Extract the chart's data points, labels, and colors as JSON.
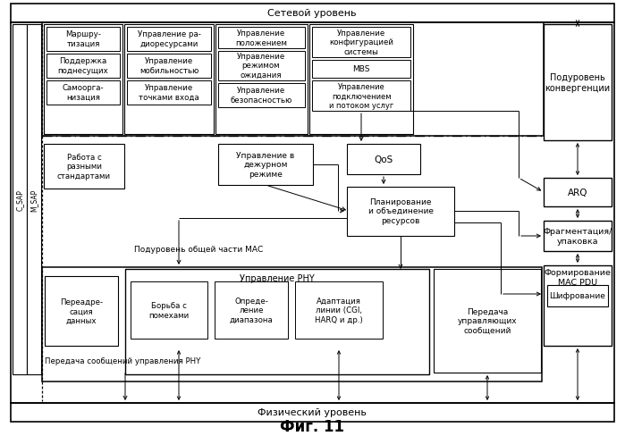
{
  "title": "Фиг. 11",
  "network_layer": "Сетевой уровень",
  "physical_layer": "Физический уровень",
  "c_sap": "C_SAP",
  "m_sap": "M_SAP",
  "convergence": "Подуровень\nконвергенции",
  "arq": "ARQ",
  "fragmentation": "Фрагментация/\nупаковка",
  "mac_pdu": "Формирование\nMAC PDU",
  "encryption": "Шифрование",
  "mac_common": "Подуровень общей части МАС",
  "phy_msg": "Передача сообщений управления PHY",
  "routing": "Маршру-\nтизация",
  "subcarrier": "Поддержка\nподнесущих",
  "selforg": "Самоорга-\nнизация",
  "radio_mgmt": "Управление ра-\nдиоресурсами",
  "mobility_mgmt": "Управление\nмобильностью",
  "entry_mgmt": "Управление\nточками входа",
  "location_mgmt": "Управление\nположением",
  "idle_mode_mgmt": "Управление\nрежимом\nожидания",
  "security_mgmt": "Управление\nбезопасностью",
  "config_mgmt": "Управление\nконфигурацией\nсистемы",
  "mbs": "MBS",
  "connection_mgmt": "Управление\nподключением\nи потоком услуг",
  "standards": "Работа с\nразными\nстандартами",
  "idle_control": "Управление в\nдежурном\nрежиме",
  "qos": "QoS",
  "planning": "Планирование\nи объединение\nресурсов",
  "data_redirect": "Переадре-\nсация\nданных",
  "phy_control": "Управление PHY",
  "interference": "Борьба с\nпомехами",
  "range_det": "Опреде-\nление\nдиапазона",
  "adaptation": "Адаптация\nлинии (CGI,\nHARQ и др.)",
  "control_msgs": "Передача\nуправляющих\nсообщений"
}
